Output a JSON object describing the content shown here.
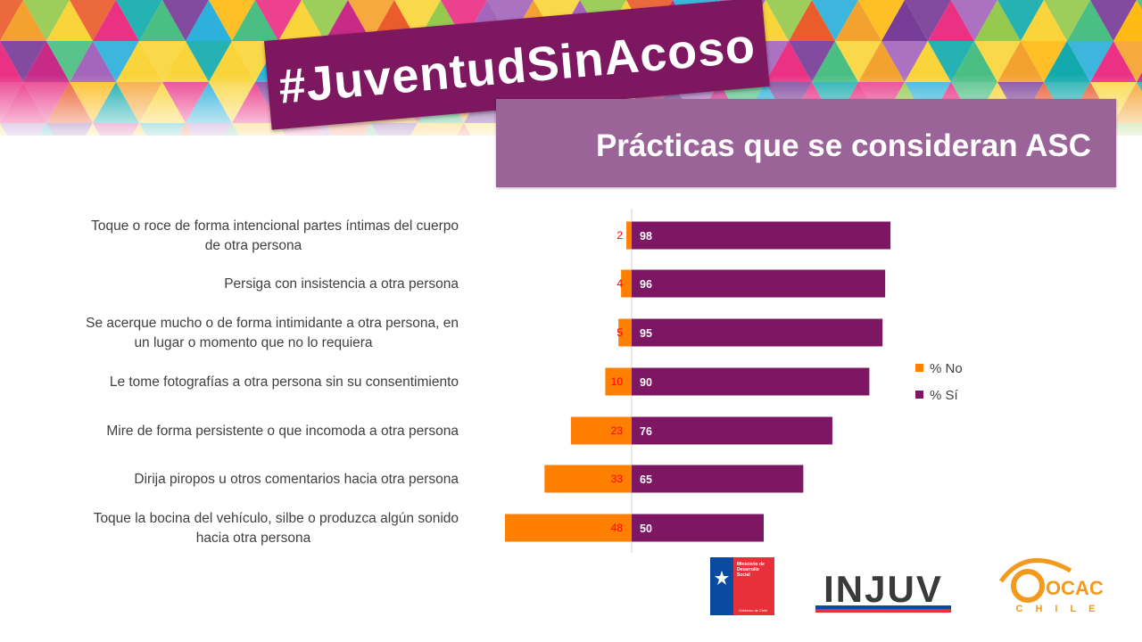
{
  "header": {
    "hashtag": "#JuventudSinAcoso",
    "subtitle": "Prácticas que se consideran ASC"
  },
  "colors": {
    "no": "#ff7f00",
    "si": "#7e1763",
    "no_label": "#ff0000",
    "si_label": "#ffffff"
  },
  "chart_data": {
    "type": "bar",
    "orientation": "horizontal",
    "stacked": "diverging",
    "categories": [
      "Toque o roce de forma intencional partes íntimas del cuerpo de otra persona",
      "Persiga con insistencia a otra persona",
      "Se acerque mucho o de forma intimidante a otra persona, en un lugar o momento que no lo requiera",
      "Le tome fotografías a otra persona sin su consentimiento",
      "Mire de forma persistente o que incomoda a otra persona",
      "Dirija piropos u otros comentarios hacia otra persona",
      "Toque la bocina del vehículo, silbe o produzca algún sonido hacia otra persona"
    ],
    "series": [
      {
        "name": "% No",
        "values": [
          2,
          4,
          5,
          10,
          23,
          33,
          48
        ]
      },
      {
        "name": "% Sí",
        "values": [
          98,
          96,
          95,
          90,
          76,
          65,
          50
        ]
      }
    ],
    "legend": "right",
    "grid": false
  },
  "logos": {
    "ministerio": {
      "lines": [
        "Ministerio de",
        "Desarrollo",
        "Social"
      ],
      "footer": "Gobierno de Chile"
    },
    "injuv": "INJUV",
    "ocac": {
      "main": "OCAC",
      "sub": "CHILE"
    }
  }
}
